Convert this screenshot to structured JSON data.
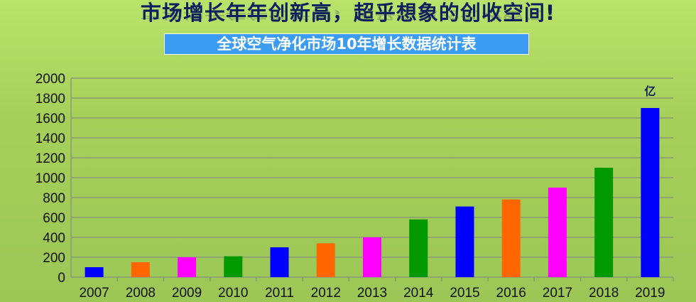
{
  "header": {
    "title": "市场增长年年创新高，超乎想象的创收空间!"
  },
  "chart_data": {
    "type": "bar",
    "title": "全球空气净化市场10年增长数据统计表",
    "categories": [
      "2007",
      "2008",
      "2009",
      "2010",
      "2011",
      "2012",
      "2013",
      "2014",
      "2015",
      "2016",
      "2017",
      "2018",
      "2019"
    ],
    "values": [
      100,
      150,
      200,
      210,
      300,
      340,
      400,
      580,
      710,
      780,
      900,
      1100,
      1700
    ],
    "colors": [
      "#0000ff",
      "#ff6600",
      "#ff00ff",
      "#009900",
      "#0000ff",
      "#ff6600",
      "#ff00ff",
      "#009900",
      "#0000ff",
      "#ff6600",
      "#ff00ff",
      "#009900",
      "#0000ff"
    ],
    "unit_label": "亿",
    "ylim": [
      0,
      2000
    ],
    "yticks": [
      "0",
      "200",
      "400",
      "600",
      "800",
      "1000",
      "1200",
      "1400",
      "1600",
      "1800",
      "2000"
    ],
    "grid": true,
    "legend": "none"
  }
}
